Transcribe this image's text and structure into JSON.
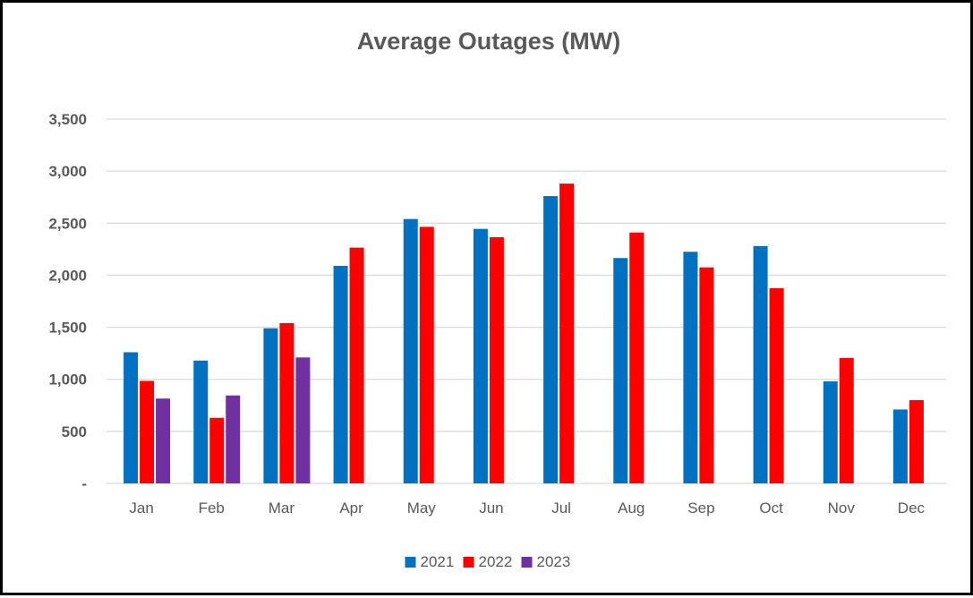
{
  "chart_data": {
    "type": "bar",
    "title": "Average Outages (MW)",
    "xlabel": "",
    "ylabel": "",
    "categories": [
      "Jan",
      "Feb",
      "Mar",
      "Apr",
      "May",
      "Jun",
      "Jul",
      "Aug",
      "Sep",
      "Oct",
      "Nov",
      "Dec"
    ],
    "series": [
      {
        "name": "2021",
        "color": "#0070C0",
        "values": [
          1260,
          1180,
          1490,
          2090,
          2540,
          2445,
          2760,
          2165,
          2225,
          2280,
          980,
          710
        ]
      },
      {
        "name": "2022",
        "color": "#FF0000",
        "values": [
          985,
          630,
          1540,
          2265,
          2465,
          2365,
          2880,
          2410,
          2075,
          1875,
          1205,
          800
        ]
      },
      {
        "name": "2023",
        "color": "#7030A0",
        "values": [
          815,
          845,
          1210,
          null,
          null,
          null,
          null,
          null,
          null,
          null,
          null,
          null
        ]
      }
    ],
    "ylim": [
      0,
      3500
    ],
    "yticks": [
      0,
      500,
      1000,
      1500,
      2000,
      2500,
      3000,
      3500
    ],
    "ytick_labels": [
      "-",
      "500",
      "1,000",
      "1,500",
      "2,000",
      "2,500",
      "3,000",
      "3,500"
    ],
    "grid": true,
    "legend_position": "bottom"
  }
}
